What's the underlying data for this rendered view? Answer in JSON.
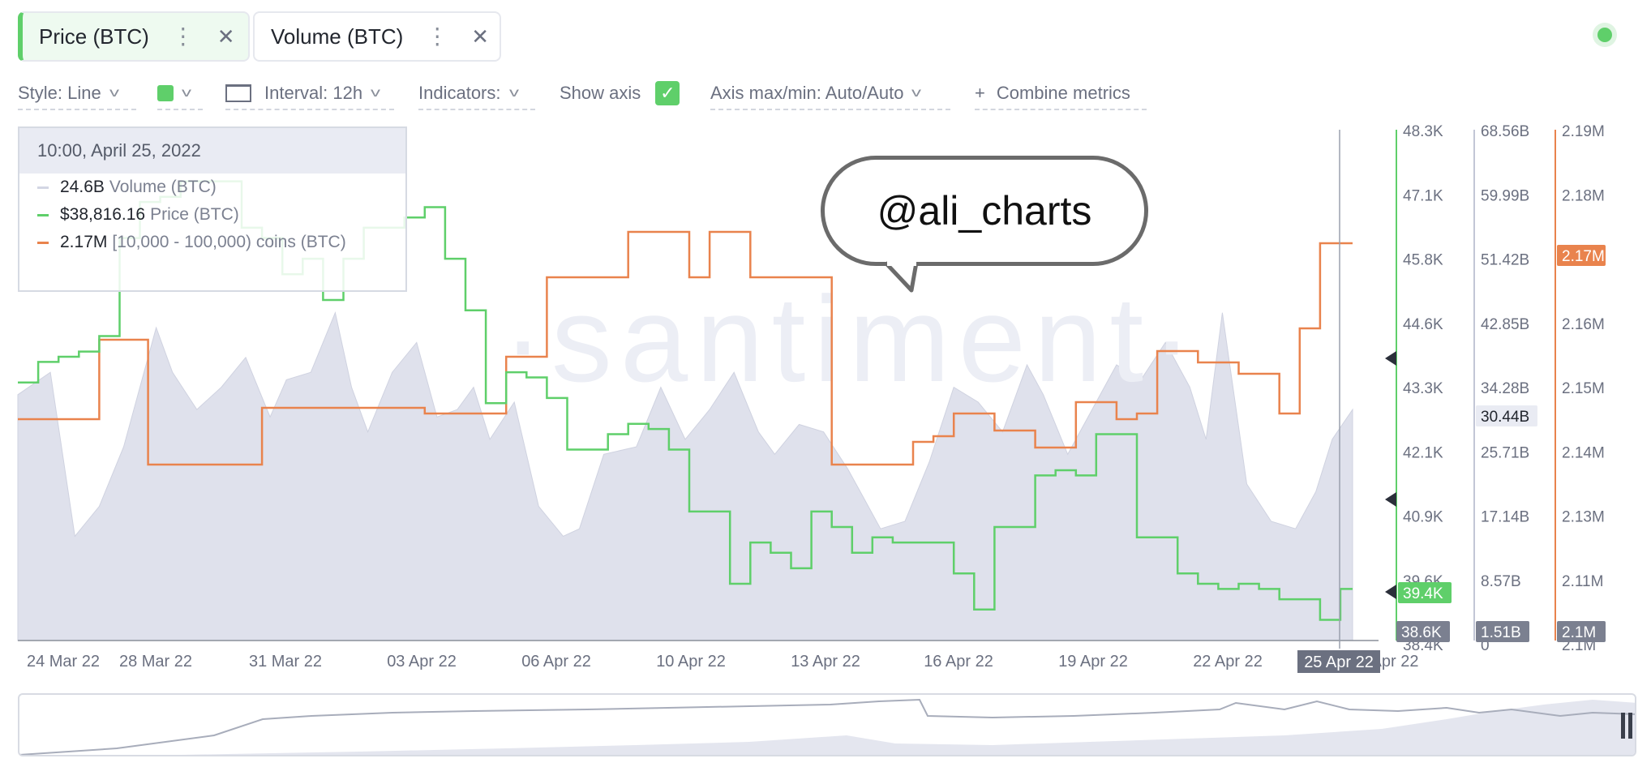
{
  "tabs": [
    {
      "label": "Price (BTC)",
      "active": true
    },
    {
      "label": "Volume (BTC)",
      "active": false
    }
  ],
  "toolbar": {
    "style_label": "Style: Line",
    "interval_label": "Interval: 12h",
    "indicators_label": "Indicators:",
    "show_axis_label": "Show axis",
    "axis_maxmin_label": "Axis max/min: Auto/Auto",
    "combine_label": "Combine metrics",
    "plus_glyph": "+",
    "check_glyph": "✓",
    "dots_glyph": "⋮",
    "close_glyph": "✕",
    "chevron_glyph": "v",
    "accent_color": "#5fcf6a"
  },
  "tooltip": {
    "date": "10:00, April 25, 2022",
    "rows": [
      {
        "value": "24.6B",
        "label": "Volume (BTC)",
        "color": "#d3d6e4"
      },
      {
        "value": "$38,816.16",
        "label": "Price (BTC)",
        "color": "#5fcf6a"
      },
      {
        "value": "2.17M",
        "label": "[10,000 - 100,000) coins (BTC)",
        "color": "#e9834d"
      }
    ]
  },
  "watermark": "·santiment·",
  "bubble_text": "@ali_charts",
  "chart_data": {
    "type": "line",
    "x_ticks": [
      "24 Mar 22",
      "28 Mar 22",
      "31 Mar 22",
      "03 Apr 22",
      "06 Apr 22",
      "10 Apr 22",
      "13 Apr 22",
      "16 Apr 22",
      "19 Apr 22",
      "22 Apr 22",
      "25 Apr 22"
    ],
    "x_ticks_partial": [
      "Apr 22"
    ],
    "crosshair_label": "25 Apr 22",
    "axes": [
      {
        "name": "Price (BTC)",
        "color": "#5fcf6a",
        "ticks": [
          "48.3K",
          "47.1K",
          "45.8K",
          "44.6K",
          "43.3K",
          "42.1K",
          "40.9K",
          "39.6K",
          "38.4K"
        ],
        "range": [
          38400,
          48300
        ],
        "marker": "39.4K",
        "crosshair_value": "38.6K"
      },
      {
        "name": "Volume (BTC)",
        "color": "#c2c6d6",
        "ticks": [
          "68.56B",
          "59.99B",
          "51.42B",
          "42.85B",
          "34.28B",
          "25.71B",
          "17.14B",
          "8.57B",
          "0"
        ],
        "range": [
          0,
          68560000000
        ],
        "marker": "30.44B",
        "crosshair_value": "1.51B"
      },
      {
        "name": "[10,000 - 100,000) coins (BTC)",
        "color": "#e9834d",
        "ticks": [
          "2.19M",
          "2.18M",
          "2.17M",
          "2.16M",
          "2.15M",
          "2.14M",
          "2.13M",
          "2.11M",
          "2.1M"
        ],
        "range": [
          2100000,
          2190000
        ],
        "marker": "2.17M",
        "crosshair_value": "2.1M"
      }
    ],
    "series": [
      {
        "name": "Price (BTC)",
        "color": "#5fcf6a",
        "style": "step",
        "x": [
          0,
          0.5,
          1,
          1.5,
          2,
          2.5,
          3,
          3.5,
          4,
          4.5,
          5,
          5.5,
          6,
          6.5,
          7,
          7.5,
          8,
          8.5,
          9,
          9.5,
          10,
          10.5,
          11,
          11.5,
          12,
          12.5,
          13,
          13.5,
          14,
          14.5,
          15,
          15.5,
          16,
          16.5,
          17,
          17.5,
          18,
          18.5,
          19,
          19.5,
          20,
          20.5,
          21,
          21.5,
          22,
          22.5,
          23,
          23.5,
          24,
          24.5,
          25,
          25.5,
          26,
          26.5,
          27,
          27.5,
          28,
          28.5,
          29,
          29.5,
          30,
          30.5,
          31,
          31.5,
          32,
          32.5,
          32.8
        ],
        "values": [
          43400,
          43800,
          43900,
          44000,
          44300,
          46200,
          46900,
          47000,
          47300,
          47300,
          47300,
          46400,
          46200,
          45500,
          45800,
          45000,
          45800,
          46400,
          46400,
          46600,
          46800,
          45800,
          44800,
          43000,
          43600,
          43500,
          43100,
          42100,
          42100,
          42400,
          42600,
          42500,
          42100,
          40900,
          40900,
          39500,
          40300,
          40100,
          39800,
          40900,
          40600,
          40100,
          40400,
          40300,
          40300,
          40300,
          39700,
          39000,
          40600,
          40600,
          41600,
          41700,
          41600,
          42400,
          42400,
          40400,
          40400,
          39700,
          39500,
          39400,
          39500,
          39400,
          39200,
          39200,
          38800,
          39400,
          39400
        ]
      },
      {
        "name": "[10,000 - 100,000) coins (BTC)",
        "color": "#e9834d",
        "style": "step",
        "x": [
          0,
          1,
          2,
          3,
          3.2,
          4,
          5,
          6,
          7,
          8,
          9,
          10,
          10.5,
          11,
          12,
          13,
          14,
          15,
          16,
          16.5,
          17,
          18,
          19,
          20,
          21,
          22,
          22.5,
          23,
          24,
          25,
          26,
          27,
          27.5,
          28,
          29,
          30,
          31,
          31.5,
          32,
          32.8
        ],
        "values": [
          2139000,
          2139000,
          2153000,
          2153000,
          2131000,
          2131000,
          2131000,
          2141000,
          2141000,
          2141000,
          2141000,
          2140000,
          2140000,
          2140000,
          2150000,
          2164000,
          2164000,
          2172000,
          2172000,
          2164000,
          2172000,
          2164000,
          2164000,
          2131000,
          2131000,
          2135000,
          2136000,
          2140000,
          2137000,
          2134000,
          2142000,
          2139000,
          2140000,
          2151000,
          2149000,
          2147000,
          2140000,
          2155000,
          2170000,
          2170000
        ]
      }
    ],
    "volume": {
      "name": "Volume (BTC)",
      "color": "#d3d6e4",
      "style": "area",
      "x": [
        0,
        0.8,
        1.4,
        2,
        2.6,
        3.4,
        3.8,
        4.4,
        5.0,
        5.6,
        6.2,
        6.6,
        7.2,
        7.8,
        8.2,
        8.6,
        9.2,
        9.8,
        10.3,
        10.8,
        11.2,
        11.6,
        12.2,
        12.8,
        13.4,
        13.8,
        14.4,
        15.2,
        15.8,
        16.4,
        17,
        17.6,
        18.2,
        18.6,
        19.2,
        19.8,
        20.4,
        20.8,
        21.2,
        21.8,
        22.4,
        23,
        23.6,
        24.2,
        24.8,
        25.2,
        25.8,
        26.4,
        27,
        27.6,
        28.2,
        28.8,
        29.2,
        29.6,
        30.2,
        30.8,
        31.4,
        31.9,
        32.3,
        32.8
      ],
      "values": [
        33000,
        36000,
        14000,
        18000,
        26000,
        42000,
        36000,
        31000,
        34000,
        38000,
        30000,
        35000,
        36000,
        44000,
        34000,
        28000,
        36000,
        40000,
        30000,
        31000,
        34000,
        27000,
        32000,
        18000,
        14000,
        15000,
        25000,
        26000,
        34000,
        27000,
        31000,
        36000,
        28000,
        25000,
        29000,
        28000,
        23000,
        19000,
        15000,
        16000,
        24000,
        34000,
        32000,
        28000,
        37000,
        33000,
        25000,
        31000,
        37000,
        35000,
        40000,
        34000,
        27000,
        44000,
        21000,
        16000,
        15000,
        20000,
        27000,
        31000
      ],
      "unit": "millions BTC"
    },
    "grid": false,
    "legend": "tooltip top-left"
  },
  "colors": {
    "price": "#5fcf6a",
    "whale": "#e9834d",
    "volume": "#d3d6e4",
    "axis_tag": "#7b8090"
  }
}
